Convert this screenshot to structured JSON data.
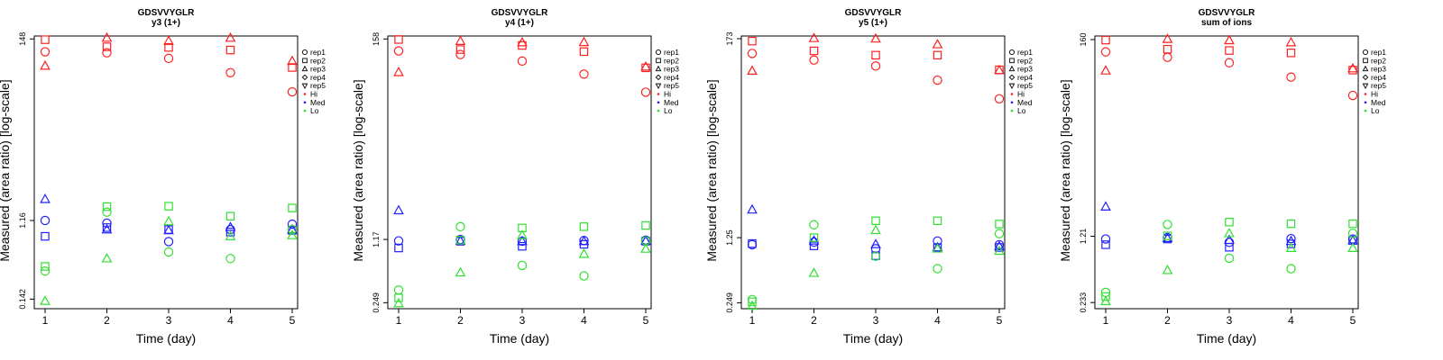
{
  "figure": {
    "xlabel": "Time (day)",
    "ylabel": "Measured (area ratio) [log-scale]"
  },
  "legend": {
    "entries": [
      {
        "label": "rep1",
        "symbol": "circle"
      },
      {
        "label": "rep2",
        "symbol": "square"
      },
      {
        "label": "rep3",
        "symbol": "triangle"
      },
      {
        "label": "rep4",
        "symbol": "diamond"
      },
      {
        "label": "rep5",
        "symbol": "triangle-down"
      },
      {
        "label": "Hi",
        "symbol": "dot"
      },
      {
        "label": "Med",
        "symbol": "dot"
      },
      {
        "label": "Lo",
        "symbol": "dot"
      }
    ]
  },
  "colors": {
    "Hi": "#ff2020",
    "Med": "#2020ff",
    "Lo": "#30e030",
    "frame": "#000000"
  },
  "chart_data": [
    {
      "type": "scatter",
      "title": "GDSVVYGLR",
      "subtitle": "y3 (1+)",
      "xlabel": "Time (day)",
      "ylabel": "Measured (area ratio) [log-scale]",
      "x_ticks": [
        "1",
        "2",
        "3",
        "4",
        "5"
      ],
      "y_ticks": [
        "0.142",
        "1.16",
        "148"
      ],
      "ylim": [
        0.11,
        160
      ],
      "series": [
        {
          "name": "Hi rep1",
          "group": "Hi",
          "rep": "rep1",
          "x": [
            1,
            2,
            3,
            4,
            5
          ],
          "y": [
            105,
            102,
            88,
            60,
            36
          ]
        },
        {
          "name": "Hi rep2",
          "group": "Hi",
          "rep": "rep2",
          "x": [
            1,
            2,
            3,
            4,
            5
          ],
          "y": [
            145,
            120,
            118,
            110,
            69
          ]
        },
        {
          "name": "Hi rep3",
          "group": "Hi",
          "rep": "rep3",
          "x": [
            1,
            2,
            3,
            4,
            5
          ],
          "y": [
            72,
            152,
            140,
            152,
            82
          ]
        },
        {
          "name": "Med rep1",
          "group": "Med",
          "rep": "rep1",
          "x": [
            1,
            2,
            3,
            4,
            5
          ],
          "y": [
            1.16,
            1.08,
            0.66,
            0.91,
            1.05
          ]
        },
        {
          "name": "Med rep2",
          "group": "Med",
          "rep": "rep2",
          "x": [
            1,
            2,
            3,
            4,
            5
          ],
          "y": [
            0.76,
            0.96,
            0.91,
            0.85,
            0.89
          ]
        },
        {
          "name": "Med rep3",
          "group": "Med",
          "rep": "rep3",
          "x": [
            1,
            2,
            3,
            4,
            5
          ],
          "y": [
            2.05,
            0.91,
            0.89,
            0.97,
            0.91
          ]
        },
        {
          "name": "Lo rep1",
          "group": "Lo",
          "rep": "rep1",
          "x": [
            1,
            2,
            3,
            4,
            5
          ],
          "y": [
            0.3,
            1.45,
            0.5,
            0.42,
            0.91
          ]
        },
        {
          "name": "Lo rep2",
          "group": "Lo",
          "rep": "rep2",
          "x": [
            1,
            2,
            3,
            4,
            5
          ],
          "y": [
            0.34,
            1.68,
            1.7,
            1.3,
            1.62
          ]
        },
        {
          "name": "Lo rep3",
          "group": "Lo",
          "rep": "rep3",
          "x": [
            1,
            2,
            3,
            4,
            5
          ],
          "y": [
            0.135,
            0.42,
            1.13,
            0.76,
            0.78
          ]
        }
      ]
    },
    {
      "type": "scatter",
      "title": "GDSVVYGLR",
      "subtitle": "y4 (1+)",
      "xlabel": "Time (day)",
      "ylabel": "Measured (area ratio) [log-scale]",
      "x_ticks": [
        "1",
        "2",
        "3",
        "4",
        "5"
      ],
      "y_ticks": [
        "0.249",
        "1.17",
        "158"
      ],
      "ylim": [
        0.215,
        170
      ],
      "series": [
        {
          "name": "Hi rep1",
          "group": "Hi",
          "rep": "rep1",
          "x": [
            1,
            2,
            3,
            4,
            5
          ],
          "y": [
            118,
            108,
            92,
            67,
            43
          ]
        },
        {
          "name": "Hi rep2",
          "group": "Hi",
          "rep": "rep2",
          "x": [
            1,
            2,
            3,
            4,
            5
          ],
          "y": [
            156,
            122,
            135,
            116,
            78
          ]
        },
        {
          "name": "Hi rep3",
          "group": "Hi",
          "rep": "rep3",
          "x": [
            1,
            2,
            3,
            4,
            5
          ],
          "y": [
            70,
            150,
            145,
            146,
            80
          ]
        },
        {
          "name": "Med rep1",
          "group": "Med",
          "rep": "rep1",
          "x": [
            1,
            2,
            3,
            4,
            5
          ],
          "y": [
            1.13,
            1.17,
            1.12,
            1.14,
            1.15
          ]
        },
        {
          "name": "Med rep2",
          "group": "Med",
          "rep": "rep2",
          "x": [
            1,
            2,
            3,
            4,
            5
          ],
          "y": [
            0.95,
            1.12,
            0.99,
            1.04,
            1.12
          ]
        },
        {
          "name": "Med rep3",
          "group": "Med",
          "rep": "rep3",
          "x": [
            1,
            2,
            3,
            4,
            5
          ],
          "y": [
            2.38,
            1.13,
            1.12,
            1.12,
            1.13
          ]
        },
        {
          "name": "Lo rep1",
          "group": "Lo",
          "rep": "rep1",
          "x": [
            1,
            2,
            3,
            4,
            5
          ],
          "y": [
            0.34,
            1.6,
            0.62,
            0.48,
            1.13
          ]
        },
        {
          "name": "Lo rep2",
          "group": "Lo",
          "rep": "rep2",
          "x": [
            1,
            2,
            3,
            4,
            5
          ],
          "y": [
            0.28,
            1.15,
            1.55,
            1.6,
            1.65
          ]
        },
        {
          "name": "Lo rep3",
          "group": "Lo",
          "rep": "rep3",
          "x": [
            1,
            2,
            3,
            4,
            5
          ],
          "y": [
            0.245,
            0.52,
            1.3,
            0.82,
            0.93
          ]
        }
      ]
    },
    {
      "type": "scatter",
      "title": "GDSVVYGLR",
      "subtitle": "y5 (1+)",
      "xlabel": "Time (day)",
      "ylabel": "Measured (area ratio) [log-scale]",
      "x_ticks": [
        "1",
        "2",
        "3",
        "4",
        "5"
      ],
      "y_ticks": [
        "0.249",
        "1.25",
        "173"
      ],
      "ylim": [
        0.215,
        185
      ],
      "series": [
        {
          "name": "Hi rep1",
          "group": "Hi",
          "rep": "rep1",
          "x": [
            1,
            2,
            3,
            4,
            5
          ],
          "y": [
            120,
            102,
            88,
            62,
            39
          ]
        },
        {
          "name": "Hi rep2",
          "group": "Hi",
          "rep": "rep2",
          "x": [
            1,
            2,
            3,
            4,
            5
          ],
          "y": [
            163,
            128,
            115,
            115,
            80
          ]
        },
        {
          "name": "Hi rep3",
          "group": "Hi",
          "rep": "rep3",
          "x": [
            1,
            2,
            3,
            4,
            5
          ],
          "y": [
            78,
            175,
            173,
            150,
            79
          ]
        },
        {
          "name": "Med rep1",
          "group": "Med",
          "rep": "rep1",
          "x": [
            1,
            2,
            3,
            4,
            5
          ],
          "y": [
            1.05,
            1.12,
            0.95,
            1.15,
            1.05
          ]
        },
        {
          "name": "Med rep2",
          "group": "Med",
          "rep": "rep2",
          "x": [
            1,
            2,
            3,
            4,
            5
          ],
          "y": [
            1.08,
            1.02,
            0.8,
            0.98,
            0.98
          ]
        },
        {
          "name": "Med rep3",
          "group": "Med",
          "rep": "rep3",
          "x": [
            1,
            2,
            3,
            4,
            5
          ],
          "y": [
            2.5,
            1.16,
            1.06,
            0.98,
            1.01
          ]
        },
        {
          "name": "Lo rep1",
          "group": "Lo",
          "rep": "rep1",
          "x": [
            1,
            2,
            3,
            4,
            5
          ],
          "y": [
            0.27,
            1.72,
            0.79,
            0.58,
            1.38
          ]
        },
        {
          "name": "Lo rep2",
          "group": "Lo",
          "rep": "rep2",
          "x": [
            1,
            2,
            3,
            4,
            5
          ],
          "y": [
            0.255,
            1.25,
            1.9,
            1.9,
            1.75
          ]
        },
        {
          "name": "Lo rep3",
          "group": "Lo",
          "rep": "rep3",
          "x": [
            1,
            2,
            3,
            4,
            5
          ],
          "y": [
            0.23,
            0.52,
            1.5,
            0.95,
            0.9
          ]
        }
      ]
    },
    {
      "type": "scatter",
      "title": "GDSVVYGLR",
      "subtitle": "sum of ions",
      "xlabel": "Time (day)",
      "ylabel": "Measured (area ratio) [log-scale]",
      "x_ticks": [
        "1",
        "2",
        "3",
        "4",
        "5"
      ],
      "y_ticks": [
        "0.233",
        "1.21",
        "160"
      ],
      "ylim": [
        0.2,
        175
      ],
      "series": [
        {
          "name": "Hi rep1",
          "group": "Hi",
          "rep": "rep1",
          "x": [
            1,
            2,
            3,
            4,
            5
          ],
          "y": [
            118,
            103,
            90,
            63,
            40
          ]
        },
        {
          "name": "Hi rep2",
          "group": "Hi",
          "rep": "rep2",
          "x": [
            1,
            2,
            3,
            4,
            5
          ],
          "y": [
            158,
            126,
            122,
            115,
            75
          ]
        },
        {
          "name": "Hi rep3",
          "group": "Hi",
          "rep": "rep3",
          "x": [
            1,
            2,
            3,
            4,
            5
          ],
          "y": [
            74,
            162,
            157,
            149,
            78
          ]
        },
        {
          "name": "Med rep1",
          "group": "Med",
          "rep": "rep1",
          "x": [
            1,
            2,
            3,
            4,
            5
          ],
          "y": [
            1.13,
            1.17,
            1.04,
            1.14,
            1.13
          ]
        },
        {
          "name": "Med rep2",
          "group": "Med",
          "rep": "rep2",
          "x": [
            1,
            2,
            3,
            4,
            5
          ],
          "y": [
            0.98,
            1.13,
            0.92,
            1.0,
            1.09
          ]
        },
        {
          "name": "Med rep3",
          "group": "Med",
          "rep": "rep3",
          "x": [
            1,
            2,
            3,
            4,
            5
          ],
          "y": [
            2.52,
            1.15,
            1.1,
            1.07,
            1.09
          ]
        },
        {
          "name": "Lo rep1",
          "group": "Lo",
          "rep": "rep1",
          "x": [
            1,
            2,
            3,
            4,
            5
          ],
          "y": [
            0.3,
            1.62,
            0.7,
            0.54,
            1.3
          ]
        },
        {
          "name": "Lo rep2",
          "group": "Lo",
          "rep": "rep2",
          "x": [
            1,
            2,
            3,
            4,
            5
          ],
          "y": [
            0.27,
            1.22,
            1.72,
            1.65,
            1.65
          ]
        },
        {
          "name": "Lo rep3",
          "group": "Lo",
          "rep": "rep3",
          "x": [
            1,
            2,
            3,
            4,
            5
          ],
          "y": [
            0.24,
            0.52,
            1.3,
            0.9,
            0.9
          ]
        }
      ]
    }
  ]
}
